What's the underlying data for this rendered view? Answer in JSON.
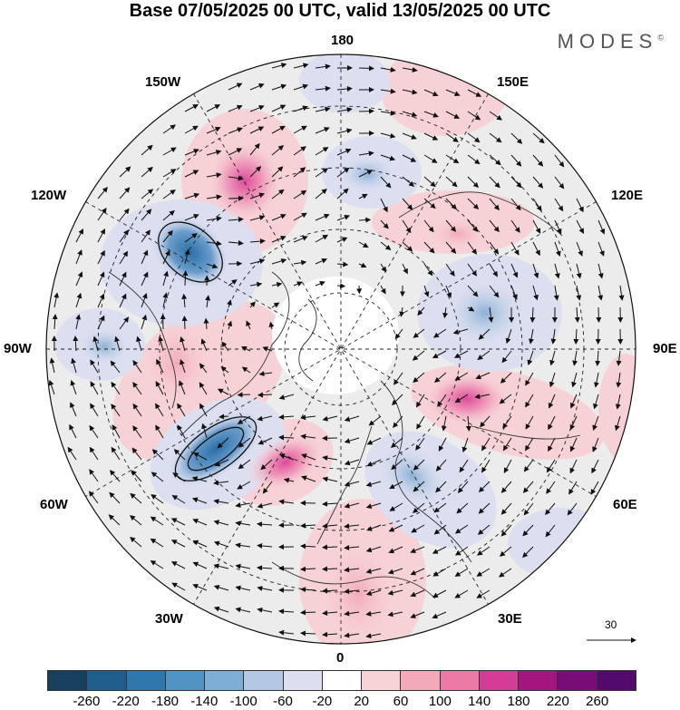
{
  "title": "Base 07/05/2025 00 UTC, valid 13/05/2025 00 UTC",
  "brand": "MODES",
  "brand_mark": "©",
  "longitude_labels": {
    "top": "180",
    "bottom": "0",
    "left": "90W",
    "right": "90E",
    "upper_left": "150W",
    "upper_left2": "120W",
    "lower_left": "60W",
    "lower_left2": "30W",
    "upper_right": "150E",
    "upper_right2": "120E",
    "lower_right": "60E",
    "lower_right2": "30E"
  },
  "reference_vector": "30",
  "colorbar": {
    "ticks": [
      "-260",
      "-220",
      "-180",
      "-140",
      "-100",
      "-60",
      "-20",
      "20",
      "60",
      "100",
      "140",
      "180",
      "220",
      "260"
    ],
    "colors": [
      "#16405e",
      "#1f5d8c",
      "#2e78ad",
      "#5094c4",
      "#7eaed4",
      "#b3c8e2",
      "#dcdff0",
      "#ffffff",
      "#f7d3d6",
      "#f3aab8",
      "#ec79a6",
      "#d33b94",
      "#a3157f",
      "#7a0c78",
      "#530a6d"
    ]
  }
}
